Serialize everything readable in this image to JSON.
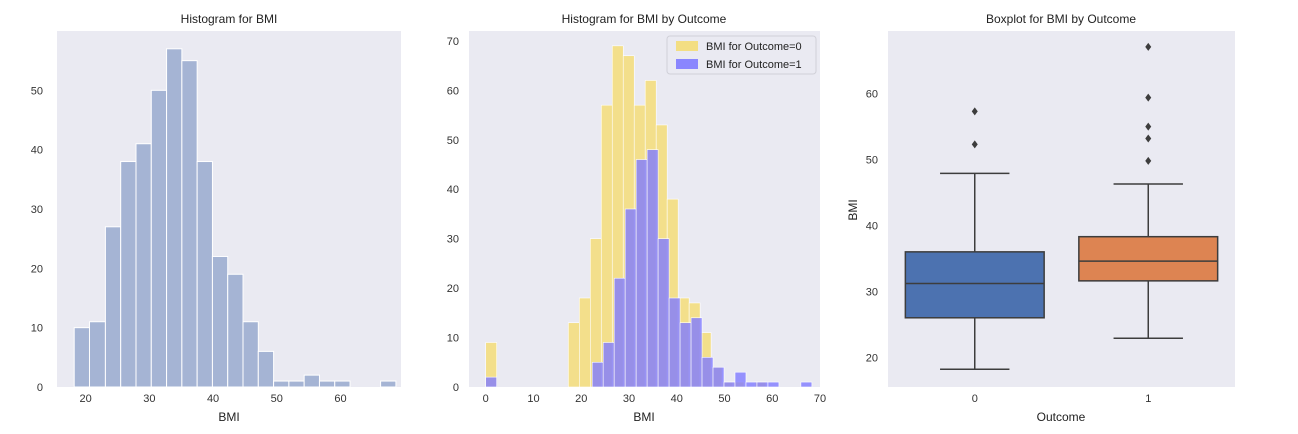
{
  "colors": {
    "panel_bg": "#eaeaf2",
    "hist_fill": "#a5b4d4",
    "outcome0_fill": "#f5dc70",
    "outcome1_fill": "#7f7bff",
    "box0": "#4c72b0",
    "box1": "#dd8452",
    "line": "#3d3d3d"
  },
  "chart_data": [
    {
      "type": "bar",
      "title": "Histogram for BMI",
      "xlabel": "BMI",
      "ylabel": "",
      "xlim": [
        15.5,
        69.5
      ],
      "ylim": [
        0,
        60
      ],
      "xticks": [
        20,
        30,
        40,
        50,
        60
      ],
      "yticks": [
        0,
        10,
        20,
        30,
        40,
        50
      ],
      "grid": false,
      "bins": [
        {
          "x0": 18.2,
          "x1": 20.6,
          "count": 10
        },
        {
          "x0": 20.6,
          "x1": 23.1,
          "count": 11
        },
        {
          "x0": 23.1,
          "x1": 25.5,
          "count": 27
        },
        {
          "x0": 25.5,
          "x1": 27.9,
          "count": 38
        },
        {
          "x0": 27.9,
          "x1": 30.3,
          "count": 41
        },
        {
          "x0": 30.3,
          "x1": 32.7,
          "count": 50
        },
        {
          "x0": 32.7,
          "x1": 35.1,
          "count": 57
        },
        {
          "x0": 35.1,
          "x1": 37.5,
          "count": 55
        },
        {
          "x0": 37.5,
          "x1": 39.9,
          "count": 38
        },
        {
          "x0": 39.9,
          "x1": 42.3,
          "count": 22
        },
        {
          "x0": 42.3,
          "x1": 44.7,
          "count": 19
        },
        {
          "x0": 44.7,
          "x1": 47.1,
          "count": 11
        },
        {
          "x0": 47.1,
          "x1": 49.5,
          "count": 6
        },
        {
          "x0": 49.5,
          "x1": 51.9,
          "count": 1
        },
        {
          "x0": 51.9,
          "x1": 54.3,
          "count": 1
        },
        {
          "x0": 54.3,
          "x1": 56.7,
          "count": 2
        },
        {
          "x0": 56.7,
          "x1": 59.1,
          "count": 1
        },
        {
          "x0": 59.1,
          "x1": 61.5,
          "count": 1
        },
        {
          "x0": 61.5,
          "x1": 63.9,
          "count": 0
        },
        {
          "x0": 63.9,
          "x1": 66.3,
          "count": 0
        },
        {
          "x0": 66.3,
          "x1": 68.7,
          "count": 1
        }
      ]
    },
    {
      "type": "bar",
      "title": "Histogram for BMI by Outcome",
      "xlabel": "BMI",
      "ylabel": "",
      "xlim": [
        -3.5,
        70
      ],
      "ylim": [
        0,
        72
      ],
      "xticks": [
        0,
        10,
        20,
        30,
        40,
        50,
        60,
        70
      ],
      "yticks": [
        0,
        10,
        20,
        30,
        40,
        50,
        60,
        70
      ],
      "grid": false,
      "legend_position": "top-right",
      "series": [
        {
          "name": "BMI for Outcome=0",
          "bin_width": 2.3,
          "bins": [
            {
              "x": 0,
              "count": 9
            },
            {
              "x": 17.3,
              "count": 13
            },
            {
              "x": 19.6,
              "count": 18
            },
            {
              "x": 21.9,
              "count": 30
            },
            {
              "x": 24.2,
              "count": 57
            },
            {
              "x": 26.5,
              "count": 69
            },
            {
              "x": 28.8,
              "count": 67
            },
            {
              "x": 31.1,
              "count": 57
            },
            {
              "x": 33.4,
              "count": 62
            },
            {
              "x": 35.7,
              "count": 53
            },
            {
              "x": 38.0,
              "count": 38
            },
            {
              "x": 40.3,
              "count": 18
            },
            {
              "x": 42.6,
              "count": 17
            },
            {
              "x": 44.9,
              "count": 11
            },
            {
              "x": 47.2,
              "count": 4
            },
            {
              "x": 49.5,
              "count": 1
            },
            {
              "x": 51.8,
              "count": 1
            },
            {
              "x": 54.1,
              "count": 0
            },
            {
              "x": 56.4,
              "count": 1
            }
          ]
        },
        {
          "name": "BMI for Outcome=1",
          "bin_width": 2.3,
          "bins": [
            {
              "x": 0,
              "count": 2
            },
            {
              "x": 22.3,
              "count": 5
            },
            {
              "x": 24.6,
              "count": 9
            },
            {
              "x": 26.9,
              "count": 22
            },
            {
              "x": 29.2,
              "count": 36
            },
            {
              "x": 31.5,
              "count": 46
            },
            {
              "x": 33.8,
              "count": 48
            },
            {
              "x": 36.1,
              "count": 30
            },
            {
              "x": 38.4,
              "count": 18
            },
            {
              "x": 40.7,
              "count": 13
            },
            {
              "x": 43.0,
              "count": 14
            },
            {
              "x": 45.3,
              "count": 6
            },
            {
              "x": 47.6,
              "count": 4
            },
            {
              "x": 49.9,
              "count": 1
            },
            {
              "x": 52.2,
              "count": 3
            },
            {
              "x": 54.5,
              "count": 1
            },
            {
              "x": 56.8,
              "count": 1
            },
            {
              "x": 59.1,
              "count": 1
            },
            {
              "x": 61.4,
              "count": 0
            },
            {
              "x": 63.7,
              "count": 0
            },
            {
              "x": 66.0,
              "count": 1
            }
          ]
        }
      ]
    },
    {
      "type": "box",
      "title": "Boxplot for BMI by Outcome",
      "xlabel": "Outcome",
      "ylabel": "BMI",
      "categories": [
        "0",
        "1"
      ],
      "ylim": [
        15.5,
        69.5
      ],
      "yticks": [
        20,
        30,
        40,
        50,
        60
      ],
      "grid": false,
      "boxes": [
        {
          "category": "0",
          "whisker_low": 18.2,
          "q1": 26.0,
          "median": 31.2,
          "q3": 36.0,
          "whisker_high": 47.9,
          "outliers": [
            52.3,
            57.3
          ]
        },
        {
          "category": "1",
          "whisker_low": 22.9,
          "q1": 31.6,
          "median": 34.6,
          "q3": 38.3,
          "whisker_high": 46.3,
          "outliers": [
            49.8,
            53.2,
            55.0,
            59.4,
            67.1
          ]
        }
      ]
    }
  ]
}
